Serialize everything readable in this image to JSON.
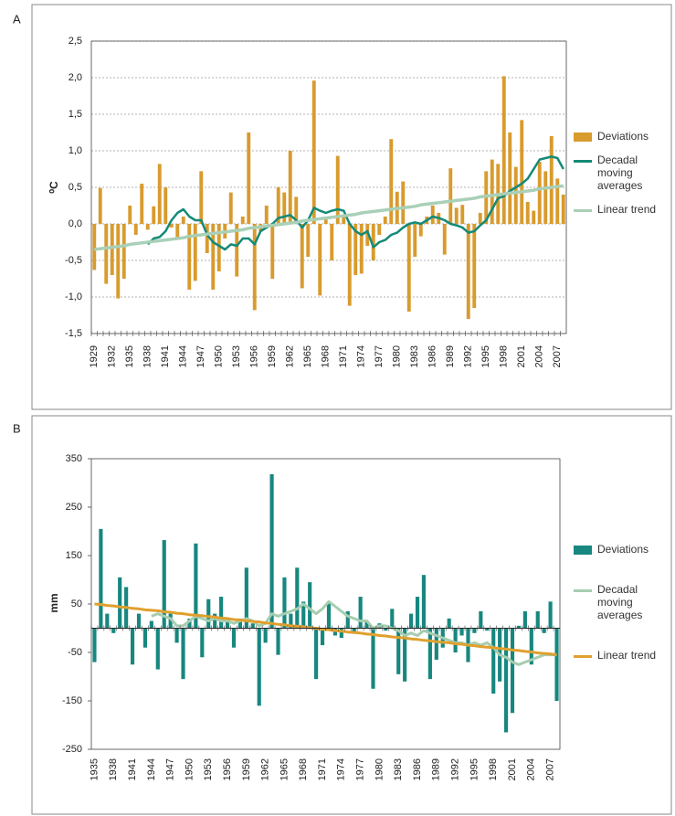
{
  "chart_data": [
    {
      "type": "bar",
      "panel": "A",
      "ylabel": "⁰C",
      "categories": [
        "1929",
        null,
        null,
        "1932",
        null,
        null,
        "1935",
        null,
        null,
        "1938",
        null,
        null,
        "1941",
        null,
        null,
        "1944",
        null,
        null,
        "1947",
        null,
        null,
        "1950",
        null,
        null,
        "1953",
        null,
        null,
        "1956",
        null,
        null,
        "1959",
        null,
        null,
        "1962",
        null,
        null,
        "1965",
        null,
        null,
        "1968",
        null,
        null,
        "1971",
        null,
        null,
        "1974",
        null,
        null,
        "1977",
        null,
        null,
        "1980",
        null,
        null,
        "1983",
        null,
        null,
        "1986",
        null,
        null,
        "1989",
        null,
        null,
        "1992",
        null,
        null,
        "1995",
        null,
        null,
        "1998",
        null,
        null,
        "2001",
        null,
        null,
        "2004",
        null,
        null,
        "2007",
        null
      ],
      "ylim": [
        -1.5,
        2.5
      ],
      "yticks": [
        {
          "value": 2.5,
          "label": "2,5"
        },
        {
          "value": 2.0,
          "label": "2,0"
        },
        {
          "value": 1.5,
          "label": "1,5"
        },
        {
          "value": 1.0,
          "label": "1,0"
        },
        {
          "value": 0.5,
          "label": "0,5"
        },
        {
          "value": 0.0,
          "label": "0,0"
        },
        {
          "value": -0.5,
          "label": "-0,5"
        },
        {
          "value": -1.0,
          "label": "-1,0"
        },
        {
          "value": -1.5,
          "label": "-1,5"
        }
      ],
      "grid": true,
      "legend": "right",
      "series": [
        {
          "name": "Deviations",
          "type": "bar",
          "color": "#d89b2e",
          "values": [
            -0.63,
            0.49,
            -0.82,
            -0.7,
            -1.02,
            -0.75,
            0.25,
            -0.15,
            0.55,
            -0.08,
            0.24,
            0.82,
            0.5,
            -0.05,
            -0.2,
            0.1,
            -0.9,
            -0.78,
            0.72,
            -0.4,
            -0.9,
            -0.65,
            -0.2,
            0.43,
            -0.72,
            0.1,
            1.25,
            -1.18,
            -0.1,
            0.25,
            -0.75,
            0.5,
            0.43,
            1.0,
            0.37,
            -0.88,
            -0.45,
            1.96,
            -0.98,
            0.1,
            -0.5,
            0.93,
            0.1,
            -1.12,
            -0.7,
            -0.68,
            -0.3,
            -0.5,
            -0.15,
            0.1,
            1.16,
            0.44,
            0.58,
            -1.2,
            -0.45,
            -0.17,
            0.1,
            0.25,
            0.15,
            -0.42,
            0.76,
            0.22,
            0.26,
            -1.3,
            -1.15,
            0.15,
            0.72,
            0.88,
            0.82,
            2.02,
            1.25,
            0.78,
            1.42,
            0.3,
            0.18,
            0.85,
            0.72,
            1.2,
            0.62,
            0.4
          ]
        },
        {
          "name": "Decadal moving averages",
          "type": "line",
          "color": "#148a78",
          "width": 2.5,
          "values": [
            null,
            null,
            null,
            null,
            null,
            null,
            null,
            null,
            null,
            -0.28,
            -0.2,
            -0.18,
            -0.1,
            0.05,
            0.15,
            0.2,
            0.1,
            0.05,
            0.05,
            -0.15,
            -0.25,
            -0.3,
            -0.35,
            -0.28,
            -0.3,
            -0.2,
            -0.2,
            -0.28,
            -0.1,
            -0.05,
            0.0,
            0.08,
            0.1,
            0.12,
            0.05,
            -0.05,
            0.05,
            0.22,
            0.18,
            0.15,
            0.18,
            0.2,
            0.18,
            0.0,
            -0.1,
            -0.15,
            -0.1,
            -0.32,
            -0.25,
            -0.22,
            -0.15,
            -0.12,
            -0.05,
            0.0,
            0.02,
            0.0,
            0.05,
            0.1,
            0.08,
            0.05,
            0.0,
            -0.02,
            -0.05,
            -0.12,
            -0.1,
            -0.02,
            0.05,
            0.2,
            0.35,
            0.38,
            0.45,
            0.5,
            0.55,
            0.62,
            0.75,
            0.88,
            0.9,
            0.92,
            0.9,
            0.75
          ]
        },
        {
          "name": "Linear trend",
          "type": "line",
          "color": "#a9d0b8",
          "width": 3.5,
          "values": [
            -0.35,
            -0.34,
            -0.33,
            -0.32,
            -0.31,
            -0.3,
            -0.28,
            -0.27,
            -0.26,
            -0.25,
            -0.24,
            -0.23,
            -0.22,
            -0.21,
            -0.2,
            -0.19,
            -0.17,
            -0.16,
            -0.15,
            -0.14,
            -0.13,
            -0.12,
            -0.11,
            -0.1,
            -0.09,
            -0.08,
            -0.06,
            -0.05,
            -0.04,
            -0.03,
            -0.02,
            -0.01,
            0.0,
            0.01,
            0.02,
            0.04,
            0.05,
            0.06,
            0.07,
            0.08,
            0.09,
            0.1,
            0.11,
            0.12,
            0.13,
            0.15,
            0.16,
            0.17,
            0.18,
            0.19,
            0.2,
            0.21,
            0.22,
            0.23,
            0.24,
            0.26,
            0.27,
            0.28,
            0.29,
            0.3,
            0.31,
            0.32,
            0.33,
            0.34,
            0.35,
            0.37,
            0.38,
            0.39,
            0.4,
            0.41,
            0.42,
            0.43,
            0.44,
            0.45,
            0.46,
            0.48,
            0.49,
            0.5,
            0.51,
            0.52
          ]
        }
      ]
    },
    {
      "type": "bar",
      "panel": "B",
      "ylabel": "mm",
      "categories": [
        "1935",
        null,
        null,
        "1938",
        null,
        null,
        "1941",
        null,
        null,
        "1944",
        null,
        null,
        "1947",
        null,
        null,
        "1950",
        null,
        null,
        "1953",
        null,
        null,
        "1956",
        null,
        null,
        "1959",
        null,
        null,
        "1962",
        null,
        null,
        "1965",
        null,
        null,
        "1968",
        null,
        null,
        "1971",
        null,
        null,
        "1974",
        null,
        null,
        "1977",
        null,
        null,
        "1980",
        null,
        null,
        "1983",
        null,
        null,
        "1986",
        null,
        null,
        "1989",
        null,
        null,
        "1992",
        null,
        null,
        "1995",
        null,
        null,
        "1998",
        null,
        null,
        "2001",
        null,
        null,
        "2004",
        null,
        null,
        "2007",
        null
      ],
      "ylim": [
        -250,
        350
      ],
      "yticks": [
        350,
        250,
        150,
        50,
        -50,
        -150,
        -250
      ],
      "grid": false,
      "legend": "right",
      "series": [
        {
          "name": "Deviations",
          "type": "bar",
          "color": "#17877f",
          "values": [
            -70,
            205,
            30,
            -10,
            105,
            85,
            -75,
            30,
            -40,
            15,
            -85,
            182,
            30,
            -30,
            -105,
            20,
            175,
            -60,
            60,
            30,
            65,
            20,
            -40,
            20,
            125,
            10,
            -160,
            -30,
            318,
            -55,
            105,
            30,
            125,
            55,
            95,
            -105,
            -35,
            55,
            -15,
            -20,
            35,
            -10,
            65,
            15,
            -125,
            10,
            -5,
            40,
            -95,
            -110,
            30,
            65,
            110,
            -105,
            -65,
            -40,
            20,
            -50,
            -15,
            -70,
            -10,
            35,
            -5,
            -135,
            -110,
            -215,
            -175,
            5,
            35,
            -75,
            35,
            -10,
            55,
            -150
          ]
        },
        {
          "name": "Decadal moving averages",
          "type": "line",
          "color": "#a6cdb0",
          "width": 3,
          "values": [
            null,
            null,
            null,
            null,
            null,
            null,
            null,
            null,
            null,
            25,
            30,
            25,
            20,
            5,
            5,
            15,
            25,
            20,
            15,
            20,
            15,
            15,
            10,
            15,
            20,
            15,
            5,
            10,
            30,
            25,
            30,
            35,
            40,
            50,
            40,
            30,
            40,
            55,
            45,
            35,
            25,
            20,
            15,
            15,
            0,
            5,
            5,
            0,
            -5,
            -15,
            -10,
            -15,
            -5,
            -10,
            -15,
            -20,
            -25,
            -30,
            -30,
            -35,
            -30,
            -35,
            -30,
            -40,
            -55,
            -60,
            -70,
            -75,
            -70,
            -65,
            -60,
            -55,
            -55,
            -55
          ]
        },
        {
          "name": "Linear trend",
          "type": "line",
          "color": "#e0a02e",
          "width": 3,
          "values": [
            50,
            49,
            47,
            46,
            44,
            43,
            41,
            40,
            38,
            37,
            36,
            34,
            33,
            31,
            30,
            28,
            27,
            26,
            24,
            23,
            21,
            20,
            18,
            17,
            15,
            14,
            13,
            11,
            10,
            8,
            7,
            5,
            4,
            3,
            1,
            0,
            -2,
            -3,
            -5,
            -6,
            -8,
            -9,
            -10,
            -12,
            -13,
            -15,
            -16,
            -18,
            -19,
            -20,
            -22,
            -23,
            -25,
            -26,
            -28,
            -29,
            -30,
            -32,
            -33,
            -35,
            -36,
            -38,
            -39,
            -40,
            -42,
            -43,
            -45,
            -46,
            -48,
            -49,
            -51,
            -52,
            -53,
            -55
          ]
        }
      ]
    }
  ]
}
